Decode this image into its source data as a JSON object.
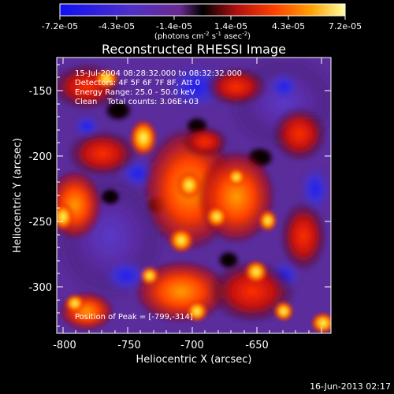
{
  "colorbar": {
    "tick_labels": [
      "-7.2e-05",
      "-4.3e-05",
      "-1.4e-05",
      "1.4e-05",
      "4.3e-05",
      "7.2e-05"
    ],
    "unit_base": "(photons cm",
    "unit_sup1": "-2",
    "unit_mid": " s",
    "unit_sup2": "-1",
    "unit_end": " asec",
    "unit_sup3": "-2",
    "unit_close": ")"
  },
  "plot": {
    "title": "Reconstructed RHESSI Image",
    "xlabel": "Heliocentric X (arcsec)",
    "ylabel": "Heliocentric Y (arcsec)",
    "x_ticks": [
      "-800",
      "-750",
      "-700",
      "-650"
    ],
    "y_ticks": [
      "-150",
      "-200",
      "-250",
      "-300"
    ]
  },
  "annotations": {
    "time_range": "15-Jul-2004 08:28:32.000 to 08:32:32.000",
    "detectors": "Detectors: 4F 5F 6F 7F 8F, Att 0",
    "energy": "Energy Range: 25.0 - 50.0 keV",
    "clean": "Clean    Total counts: 3.06E+03",
    "peak": "Position of Peak = [-799,-314]"
  },
  "footer": {
    "date": "16-Jun-2013 02:17"
  }
}
